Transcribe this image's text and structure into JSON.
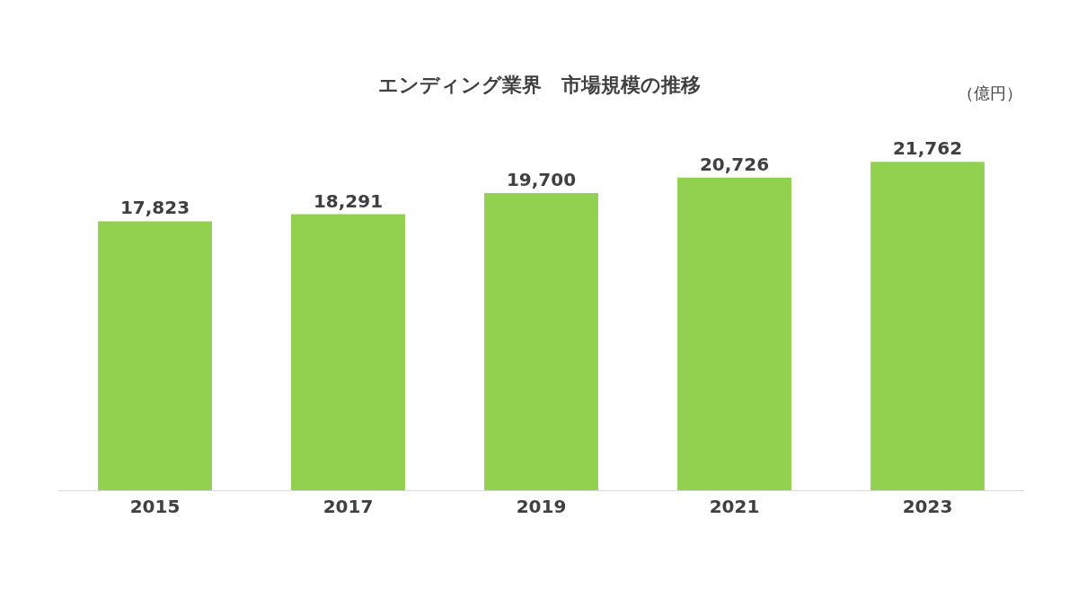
{
  "chart_data": {
    "type": "bar",
    "title": "エンディング業界　市場規模の推移",
    "categories": [
      "2015",
      "2017",
      "2019",
      "2021",
      "2023"
    ],
    "values": [
      17823,
      18291,
      19700,
      20726,
      21762
    ],
    "value_labels": [
      "17,823",
      "18,291",
      "19,700",
      "20,726",
      "21,762"
    ],
    "color": "#92d050",
    "annotations": [
      "（億円）"
    ]
  }
}
